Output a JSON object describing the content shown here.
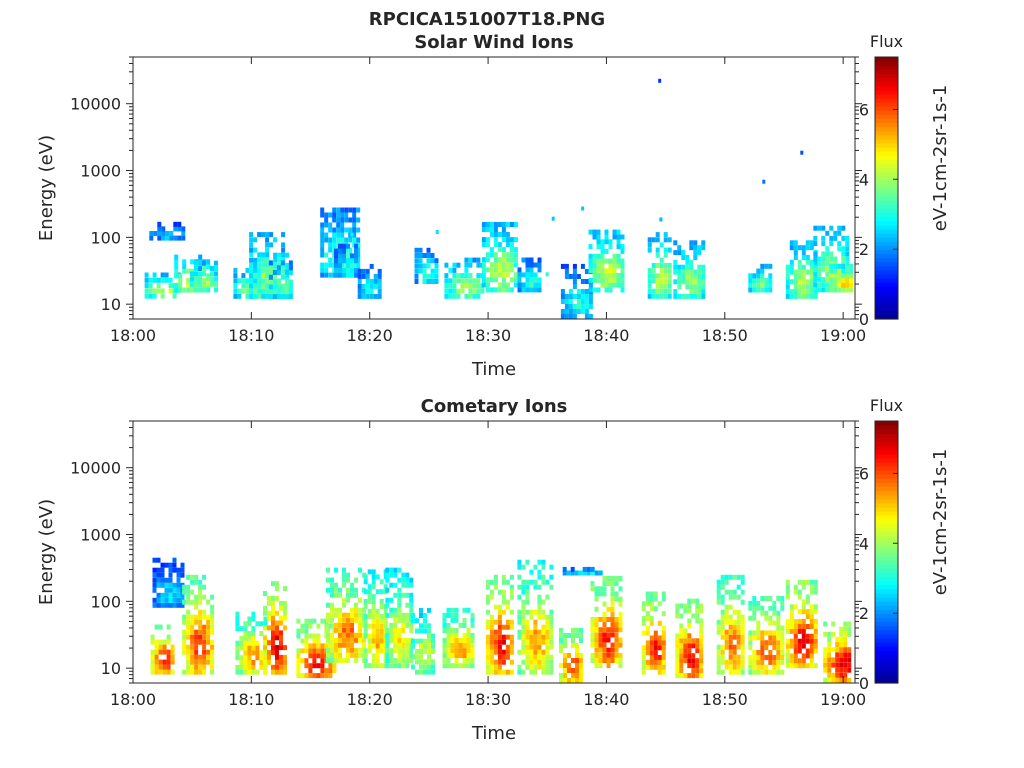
{
  "figure": {
    "title": "RPCICA151007T18.PNG"
  },
  "colormap": [
    "#00008f",
    "#0000ff",
    "#007fff",
    "#00ffff",
    "#7fff7f",
    "#ffff00",
    "#ff7f00",
    "#ff0000",
    "#7f0000"
  ],
  "chart_data": [
    {
      "type": "heatmap",
      "title": "Solar Wind Ions",
      "xlabel": "Time",
      "ylabel": "Energy (eV)",
      "xlim": [
        "18:00",
        "19:01"
      ],
      "ylim": [
        6,
        50000
      ],
      "yscale": "log",
      "xticks": [
        "18:00",
        "18:10",
        "18:20",
        "18:30",
        "18:40",
        "18:50",
        "19:00"
      ],
      "yticks": [
        "10",
        "100",
        "1000",
        "10000"
      ],
      "colorbar": {
        "title": "Flux",
        "label": "eV-1cm-2sr-1s-1",
        "range": [
          0,
          7.5
        ],
        "ticks": [
          "0",
          "2",
          "4",
          "6"
        ]
      },
      "grid": false,
      "bursts": [
        {
          "t": 18.0417,
          "e_min": 12,
          "e_max": 30,
          "flux": 4.2
        },
        {
          "t": 18.0483,
          "e_min": 90,
          "e_max": 170,
          "flux": 2.4
        },
        {
          "t": 18.0833,
          "e_min": 15,
          "e_max": 55,
          "flux": 4.5
        },
        {
          "t": 18.1,
          "e_min": 15,
          "e_max": 45,
          "flux": 4.0
        },
        {
          "t": 18.1583,
          "e_min": 12,
          "e_max": 35,
          "flux": 3.8
        },
        {
          "t": 18.1833,
          "e_min": 12,
          "e_max": 60,
          "flux": 4.6
        },
        {
          "t": 18.1917,
          "e_min": 12,
          "e_max": 120,
          "flux": 3.8
        },
        {
          "t": 18.2083,
          "e_min": 12,
          "e_max": 45,
          "flux": 3.6
        },
        {
          "t": 18.2917,
          "e_min": 25,
          "e_max": 280,
          "flux": 3.4
        },
        {
          "t": 18.3,
          "e_min": 25,
          "e_max": 80,
          "flux": 3.0
        },
        {
          "t": 18.3333,
          "e_min": 12,
          "e_max": 40,
          "flux": 3.0
        },
        {
          "t": 18.4133,
          "e_min": 20,
          "e_max": 70,
          "flux": 3.2
        },
        {
          "t": 18.4667,
          "e_min": 12,
          "e_max": 50,
          "flux": 4.0
        },
        {
          "t": 18.5167,
          "e_min": 15,
          "e_max": 170,
          "flux": 4.2
        },
        {
          "t": 18.5583,
          "e_min": 15,
          "e_max": 50,
          "flux": 3.2
        },
        {
          "t": 18.625,
          "e_min": 6,
          "e_max": 40,
          "flux": 3.0
        },
        {
          "t": 18.6667,
          "e_min": 15,
          "e_max": 130,
          "flux": 4.3
        },
        {
          "t": 18.7417,
          "e_min": 12,
          "e_max": 120,
          "flux": 4.2
        },
        {
          "t": 18.7833,
          "e_min": 12,
          "e_max": 90,
          "flux": 4.0
        },
        {
          "t": 18.8833,
          "e_min": 15,
          "e_max": 40,
          "flux": 3.8
        },
        {
          "t": 18.9417,
          "e_min": 12,
          "e_max": 90,
          "flux": 4.2
        },
        {
          "t": 18.9833,
          "e_min": 15,
          "e_max": 150,
          "flux": 4.0
        },
        {
          "t": 19.0,
          "e_min": 15,
          "e_max": 40,
          "flux": 5.0
        }
      ],
      "isolated_points": [
        {
          "t": 18.7417,
          "e": 22000,
          "flux": 1.3
        },
        {
          "t": 18.9417,
          "e": 1850,
          "flux": 1.5
        },
        {
          "t": 18.8883,
          "e": 680,
          "flux": 1.8
        },
        {
          "t": 18.6333,
          "e": 270,
          "flux": 2.4
        },
        {
          "t": 18.5917,
          "e": 190,
          "flux": 2.4
        },
        {
          "t": 18.7433,
          "e": 185,
          "flux": 2.3
        },
        {
          "t": 18.4283,
          "e": 120,
          "flux": 2.6
        },
        {
          "t": 18.3083,
          "e": 110,
          "flux": 2.8
        },
        {
          "t": 18.5833,
          "e": 28,
          "flux": 3.0
        }
      ]
    },
    {
      "type": "heatmap",
      "title": "Cometary Ions",
      "xlabel": "Time",
      "ylabel": "Energy (eV)",
      "xlim": [
        "18:00",
        "19:01"
      ],
      "ylim": [
        6,
        50000
      ],
      "yscale": "log",
      "xticks": [
        "18:00",
        "18:10",
        "18:20",
        "18:30",
        "18:40",
        "18:50",
        "19:00"
      ],
      "yticks": [
        "10",
        "100",
        "1000",
        "10000"
      ],
      "colorbar": {
        "title": "Flux",
        "label": "eV-1cm-2sr-1s-1",
        "range": [
          0,
          7.5
        ],
        "ticks": [
          "0",
          "2",
          "4",
          "6"
        ]
      },
      "grid": false,
      "bursts": [
        {
          "t": 18.0417,
          "e_min": 8,
          "e_max": 45,
          "flux": 6.5
        },
        {
          "t": 18.05,
          "e_min": 80,
          "e_max": 450,
          "flux": 2.6
        },
        {
          "t": 18.0917,
          "e_min": 8,
          "e_max": 250,
          "flux": 6.2
        },
        {
          "t": 18.1667,
          "e_min": 8,
          "e_max": 70,
          "flux": 5.5
        },
        {
          "t": 18.2,
          "e_min": 8,
          "e_max": 200,
          "flux": 6.8
        },
        {
          "t": 18.2583,
          "e_min": 6,
          "e_max": 55,
          "flux": 6.5
        },
        {
          "t": 18.3,
          "e_min": 12,
          "e_max": 320,
          "flux": 5.8
        },
        {
          "t": 18.3417,
          "e_min": 10,
          "e_max": 300,
          "flux": 5.3
        },
        {
          "t": 18.375,
          "e_min": 10,
          "e_max": 320,
          "flux": 4.8
        },
        {
          "t": 18.4083,
          "e_min": 8,
          "e_max": 80,
          "flux": 4.5
        },
        {
          "t": 18.4583,
          "e_min": 10,
          "e_max": 80,
          "flux": 5.5
        },
        {
          "t": 18.5167,
          "e_min": 8,
          "e_max": 250,
          "flux": 6.6
        },
        {
          "t": 18.5667,
          "e_min": 8,
          "e_max": 420,
          "flux": 5.4
        },
        {
          "t": 18.6167,
          "e_min": 6,
          "e_max": 40,
          "flux": 6.2
        },
        {
          "t": 18.6333,
          "e_min": 250,
          "e_max": 320,
          "flux": 2.8
        },
        {
          "t": 18.6667,
          "e_min": 10,
          "e_max": 240,
          "flux": 6.4
        },
        {
          "t": 18.7333,
          "e_min": 8,
          "e_max": 140,
          "flux": 6.5
        },
        {
          "t": 18.7833,
          "e_min": 6,
          "e_max": 110,
          "flux": 6.6
        },
        {
          "t": 18.8417,
          "e_min": 8,
          "e_max": 250,
          "flux": 5.8
        },
        {
          "t": 18.8917,
          "e_min": 8,
          "e_max": 120,
          "flux": 6.0
        },
        {
          "t": 18.9417,
          "e_min": 10,
          "e_max": 210,
          "flux": 6.6
        },
        {
          "t": 19.0,
          "e_min": 6,
          "e_max": 50,
          "flux": 6.8
        }
      ],
      "isolated_points": []
    }
  ]
}
